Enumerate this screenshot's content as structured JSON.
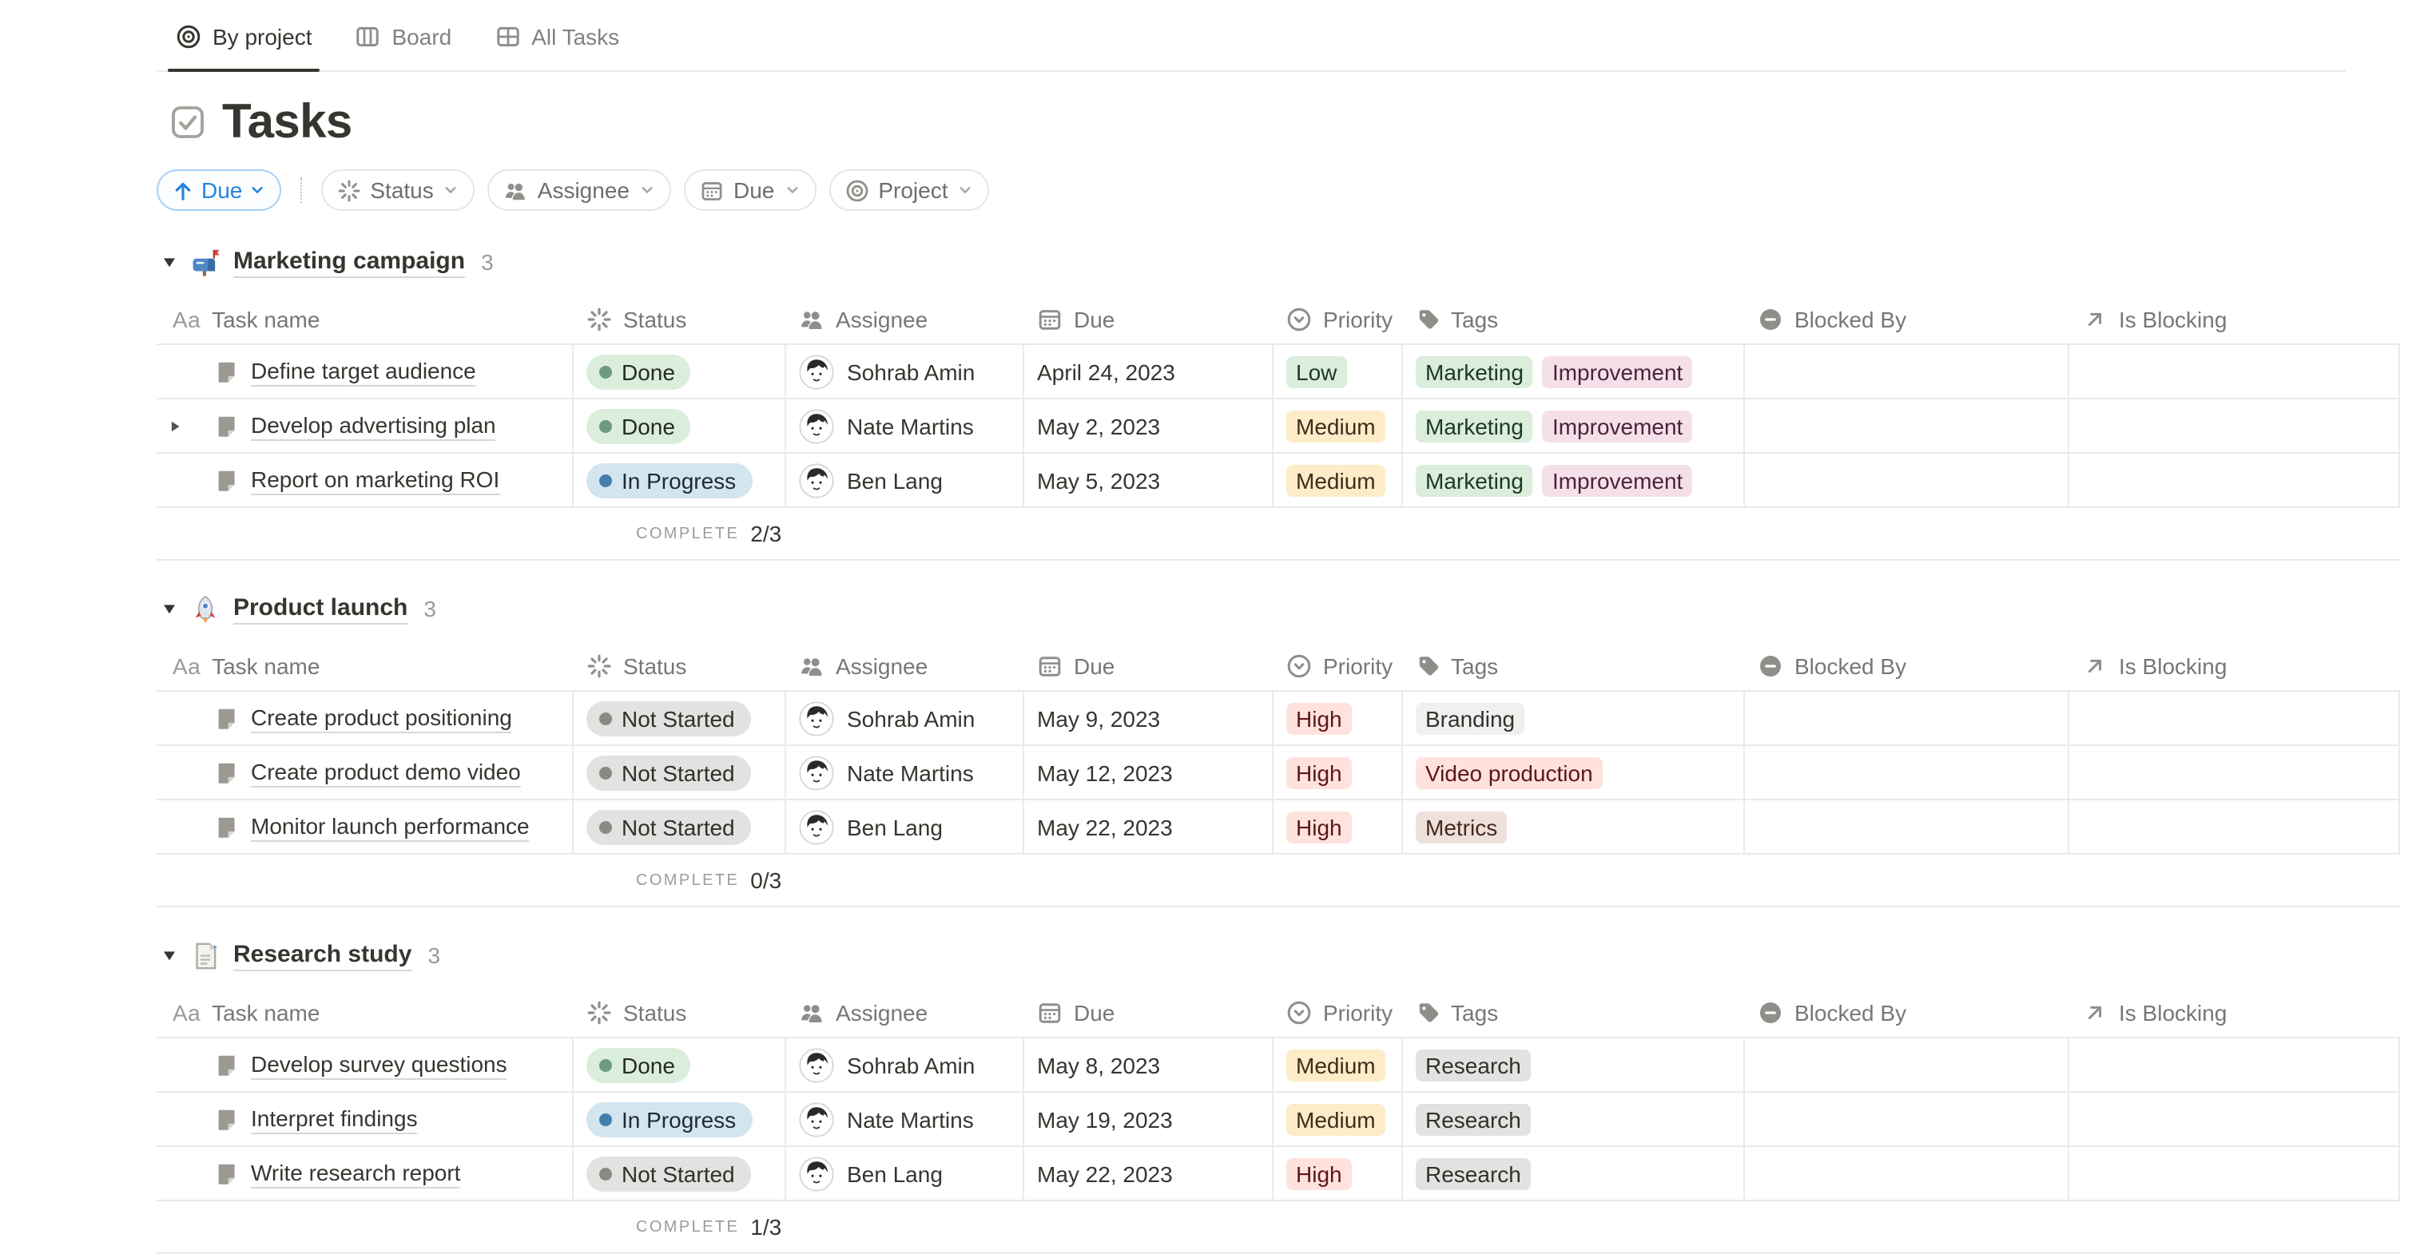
{
  "tabs": [
    {
      "label": "By project",
      "icon": "target-icon",
      "active": true
    },
    {
      "label": "Board",
      "icon": "board-icon",
      "active": false
    },
    {
      "label": "All Tasks",
      "icon": "table-icon",
      "active": false
    }
  ],
  "page": {
    "title": "Tasks",
    "icon": "checkbox-icon"
  },
  "toolbar": {
    "sort": {
      "label": "Due",
      "direction": "ascending",
      "direction_icon": "arrow-up-icon"
    },
    "filters": [
      {
        "label": "Status",
        "icon": "spinner-icon"
      },
      {
        "label": "Assignee",
        "icon": "people-icon"
      },
      {
        "label": "Due",
        "icon": "calendar-icon"
      },
      {
        "label": "Project",
        "icon": "target-icon"
      }
    ]
  },
  "table": {
    "columns": [
      {
        "label": "Task name",
        "icon": "aa-icon",
        "icon_text": "Aa"
      },
      {
        "label": "Status",
        "icon": "spinner-icon"
      },
      {
        "label": "Assignee",
        "icon": "people-icon"
      },
      {
        "label": "Due",
        "icon": "calendar-icon"
      },
      {
        "label": "Priority",
        "icon": "priority-icon"
      },
      {
        "label": "Tags",
        "icon": "tag-icon"
      },
      {
        "label": "Blocked By",
        "icon": "blocked-icon"
      },
      {
        "label": "Is Blocking",
        "icon": "arrow-ne-icon"
      }
    ]
  },
  "groups": [
    {
      "name": "Marketing campaign",
      "icon": "mailbox-icon",
      "count": "3",
      "complete": {
        "label": "COMPLETE",
        "value": "2/3"
      },
      "rows": [
        {
          "task": "Define target audience",
          "has_subitems": false,
          "status": "Done",
          "assignee": "Sohrab Amin",
          "due": "April 24, 2023",
          "priority": "Low",
          "tags": [
            "Marketing",
            "Improvement"
          ],
          "blocked_by": "",
          "is_blocking": ""
        },
        {
          "task": "Develop advertising plan",
          "has_subitems": true,
          "status": "Done",
          "assignee": "Nate Martins",
          "due": "May 2, 2023",
          "priority": "Medium",
          "tags": [
            "Marketing",
            "Improvement"
          ],
          "blocked_by": "",
          "is_blocking": ""
        },
        {
          "task": "Report on marketing ROI",
          "has_subitems": false,
          "status": "In Progress",
          "assignee": "Ben Lang",
          "due": "May 5, 2023",
          "priority": "Medium",
          "tags": [
            "Marketing",
            "Improvement"
          ],
          "blocked_by": "",
          "is_blocking": ""
        }
      ]
    },
    {
      "name": "Product launch",
      "icon": "rocket-icon",
      "count": "3",
      "complete": {
        "label": "COMPLETE",
        "value": "0/3"
      },
      "rows": [
        {
          "task": "Create product positioning",
          "has_subitems": false,
          "status": "Not Started",
          "assignee": "Sohrab Amin",
          "due": "May 9, 2023",
          "priority": "High",
          "tags": [
            "Branding"
          ],
          "blocked_by": "",
          "is_blocking": ""
        },
        {
          "task": "Create product demo video",
          "has_subitems": false,
          "status": "Not Started",
          "assignee": "Nate Martins",
          "due": "May 12, 2023",
          "priority": "High",
          "tags": [
            "Video production"
          ],
          "blocked_by": "",
          "is_blocking": ""
        },
        {
          "task": "Monitor launch performance",
          "has_subitems": false,
          "status": "Not Started",
          "assignee": "Ben Lang",
          "due": "May 22, 2023",
          "priority": "High",
          "tags": [
            "Metrics"
          ],
          "blocked_by": "",
          "is_blocking": ""
        }
      ]
    },
    {
      "name": "Research study",
      "icon": "page-icon",
      "count": "3",
      "complete": {
        "label": "COMPLETE",
        "value": "1/3"
      },
      "rows": [
        {
          "task": "Develop survey questions",
          "has_subitems": false,
          "status": "Done",
          "assignee": "Sohrab Amin",
          "due": "May 8, 2023",
          "priority": "Medium",
          "tags": [
            "Research"
          ],
          "blocked_by": "",
          "is_blocking": ""
        },
        {
          "task": "Interpret findings",
          "has_subitems": false,
          "status": "In Progress",
          "assignee": "Nate Martins",
          "due": "May 19, 2023",
          "priority": "Medium",
          "tags": [
            "Research"
          ],
          "blocked_by": "",
          "is_blocking": ""
        },
        {
          "task": "Write research report",
          "has_subitems": false,
          "status": "Not Started",
          "assignee": "Ben Lang",
          "due": "May 22, 2023",
          "priority": "High",
          "tags": [
            "Research"
          ],
          "blocked_by": "",
          "is_blocking": ""
        }
      ]
    }
  ],
  "colors": {
    "accent_blue": "#2383E2",
    "status": {
      "Done": {
        "bg": "#DBEDDB",
        "dot": "#6C9B7D",
        "text": "#252B25"
      },
      "In Progress": {
        "bg": "#D3E5EF",
        "dot": "#437FAC",
        "text": "#1E2B36"
      },
      "Not Started": {
        "bg": "#E3E2E0",
        "dot": "#8A8984",
        "text": "#32302C"
      }
    },
    "priority": {
      "Low": {
        "bg": "#DBEDDB",
        "text": "#1C3829"
      },
      "Medium": {
        "bg": "#FDECC8",
        "text": "#402C1B"
      },
      "High": {
        "bg": "#FFE2DD",
        "text": "#5D1715"
      }
    },
    "tags": {
      "Marketing": {
        "bg": "#DBEDDB",
        "text": "#1C3829"
      },
      "Improvement": {
        "bg": "#F5E0E9",
        "text": "#4C2337"
      },
      "Branding": {
        "bg": "#F1F0EF",
        "text": "#32302C"
      },
      "Video production": {
        "bg": "#FFE2DD",
        "text": "#5D1715"
      },
      "Metrics": {
        "bg": "#EEE0DA",
        "text": "#442A1E"
      },
      "Research": {
        "bg": "#E3E2E0",
        "text": "#32302C"
      }
    }
  }
}
